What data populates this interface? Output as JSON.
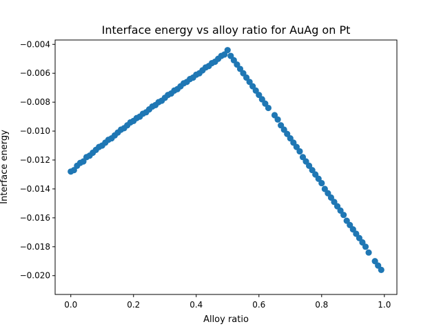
{
  "chart_data": {
    "type": "scatter",
    "title": "Interface energy vs alloy ratio for AuAg on Pt",
    "xlabel": "Alloy ratio",
    "ylabel": "Interface energy",
    "xlim": [
      -0.05,
      1.04
    ],
    "ylim": [
      -0.0213,
      -0.0037
    ],
    "x_ticks": [
      0.0,
      0.2,
      0.4,
      0.6,
      0.8,
      1.0
    ],
    "x_tick_labels": [
      "0.0",
      "0.2",
      "0.4",
      "0.6",
      "0.8",
      "1.0"
    ],
    "y_ticks": [
      -0.02,
      -0.018,
      -0.016,
      -0.014,
      -0.012,
      -0.01,
      -0.008,
      -0.006,
      -0.004
    ],
    "y_tick_labels": [
      "−0.020",
      "−0.018",
      "−0.016",
      "−0.014",
      "−0.012",
      "−0.010",
      "−0.008",
      "−0.006",
      "−0.004"
    ],
    "grid": false,
    "series": [
      {
        "color": "#1f77b4",
        "points": [
          [
            0.0,
            -0.0128
          ],
          [
            0.01,
            -0.0127
          ],
          [
            0.02,
            -0.0124
          ],
          [
            0.03,
            -0.0122
          ],
          [
            0.04,
            -0.0121
          ],
          [
            0.05,
            -0.0118
          ],
          [
            0.06,
            -0.0117
          ],
          [
            0.07,
            -0.0115
          ],
          [
            0.08,
            -0.0113
          ],
          [
            0.09,
            -0.0111
          ],
          [
            0.1,
            -0.011
          ],
          [
            0.11,
            -0.0108
          ],
          [
            0.12,
            -0.0106
          ],
          [
            0.13,
            -0.0105
          ],
          [
            0.14,
            -0.0103
          ],
          [
            0.15,
            -0.0101
          ],
          [
            0.16,
            -0.0099
          ],
          [
            0.17,
            -0.0098
          ],
          [
            0.18,
            -0.0096
          ],
          [
            0.19,
            -0.0094
          ],
          [
            0.2,
            -0.0093
          ],
          [
            0.21,
            -0.0091
          ],
          [
            0.22,
            -0.009
          ],
          [
            0.23,
            -0.0088
          ],
          [
            0.24,
            -0.0087
          ],
          [
            0.25,
            -0.0085
          ],
          [
            0.26,
            -0.0083
          ],
          [
            0.27,
            -0.0082
          ],
          [
            0.28,
            -0.008
          ],
          [
            0.29,
            -0.0079
          ],
          [
            0.3,
            -0.0077
          ],
          [
            0.31,
            -0.0075
          ],
          [
            0.32,
            -0.0074
          ],
          [
            0.33,
            -0.0072
          ],
          [
            0.34,
            -0.0071
          ],
          [
            0.35,
            -0.0069
          ],
          [
            0.36,
            -0.0067
          ],
          [
            0.37,
            -0.0066
          ],
          [
            0.38,
            -0.0064
          ],
          [
            0.39,
            -0.0063
          ],
          [
            0.4,
            -0.0061
          ],
          [
            0.41,
            -0.006
          ],
          [
            0.42,
            -0.0058
          ],
          [
            0.43,
            -0.0056
          ],
          [
            0.44,
            -0.0055
          ],
          [
            0.45,
            -0.0053
          ],
          [
            0.46,
            -0.0052
          ],
          [
            0.47,
            -0.005
          ],
          [
            0.48,
            -0.0048
          ],
          [
            0.49,
            -0.0047
          ],
          [
            0.5,
            -0.0044
          ],
          [
            0.51,
            -0.0048
          ],
          [
            0.52,
            -0.0051
          ],
          [
            0.53,
            -0.0054
          ],
          [
            0.54,
            -0.0057
          ],
          [
            0.55,
            -0.006
          ],
          [
            0.56,
            -0.0063
          ],
          [
            0.57,
            -0.0066
          ],
          [
            0.58,
            -0.0069
          ],
          [
            0.59,
            -0.0072
          ],
          [
            0.6,
            -0.0075
          ],
          [
            0.61,
            -0.0078
          ],
          [
            0.62,
            -0.0081
          ],
          [
            0.63,
            -0.0084
          ],
          [
            0.65,
            -0.0089
          ],
          [
            0.66,
            -0.0092
          ],
          [
            0.67,
            -0.0096
          ],
          [
            0.68,
            -0.0099
          ],
          [
            0.69,
            -0.0102
          ],
          [
            0.7,
            -0.0105
          ],
          [
            0.71,
            -0.0108
          ],
          [
            0.72,
            -0.0111
          ],
          [
            0.73,
            -0.0114
          ],
          [
            0.74,
            -0.0118
          ],
          [
            0.75,
            -0.0121
          ],
          [
            0.76,
            -0.0124
          ],
          [
            0.77,
            -0.0127
          ],
          [
            0.78,
            -0.013
          ],
          [
            0.79,
            -0.0133
          ],
          [
            0.8,
            -0.0136
          ],
          [
            0.81,
            -0.014
          ],
          [
            0.82,
            -0.0143
          ],
          [
            0.83,
            -0.0146
          ],
          [
            0.84,
            -0.0149
          ],
          [
            0.85,
            -0.0152
          ],
          [
            0.86,
            -0.0155
          ],
          [
            0.87,
            -0.0158
          ],
          [
            0.88,
            -0.0162
          ],
          [
            0.89,
            -0.0165
          ],
          [
            0.9,
            -0.0168
          ],
          [
            0.91,
            -0.0171
          ],
          [
            0.92,
            -0.0174
          ],
          [
            0.93,
            -0.0177
          ],
          [
            0.94,
            -0.018
          ],
          [
            0.95,
            -0.0184
          ],
          [
            0.97,
            -0.019
          ],
          [
            0.98,
            -0.0193
          ],
          [
            0.99,
            -0.0196
          ]
        ]
      }
    ]
  }
}
